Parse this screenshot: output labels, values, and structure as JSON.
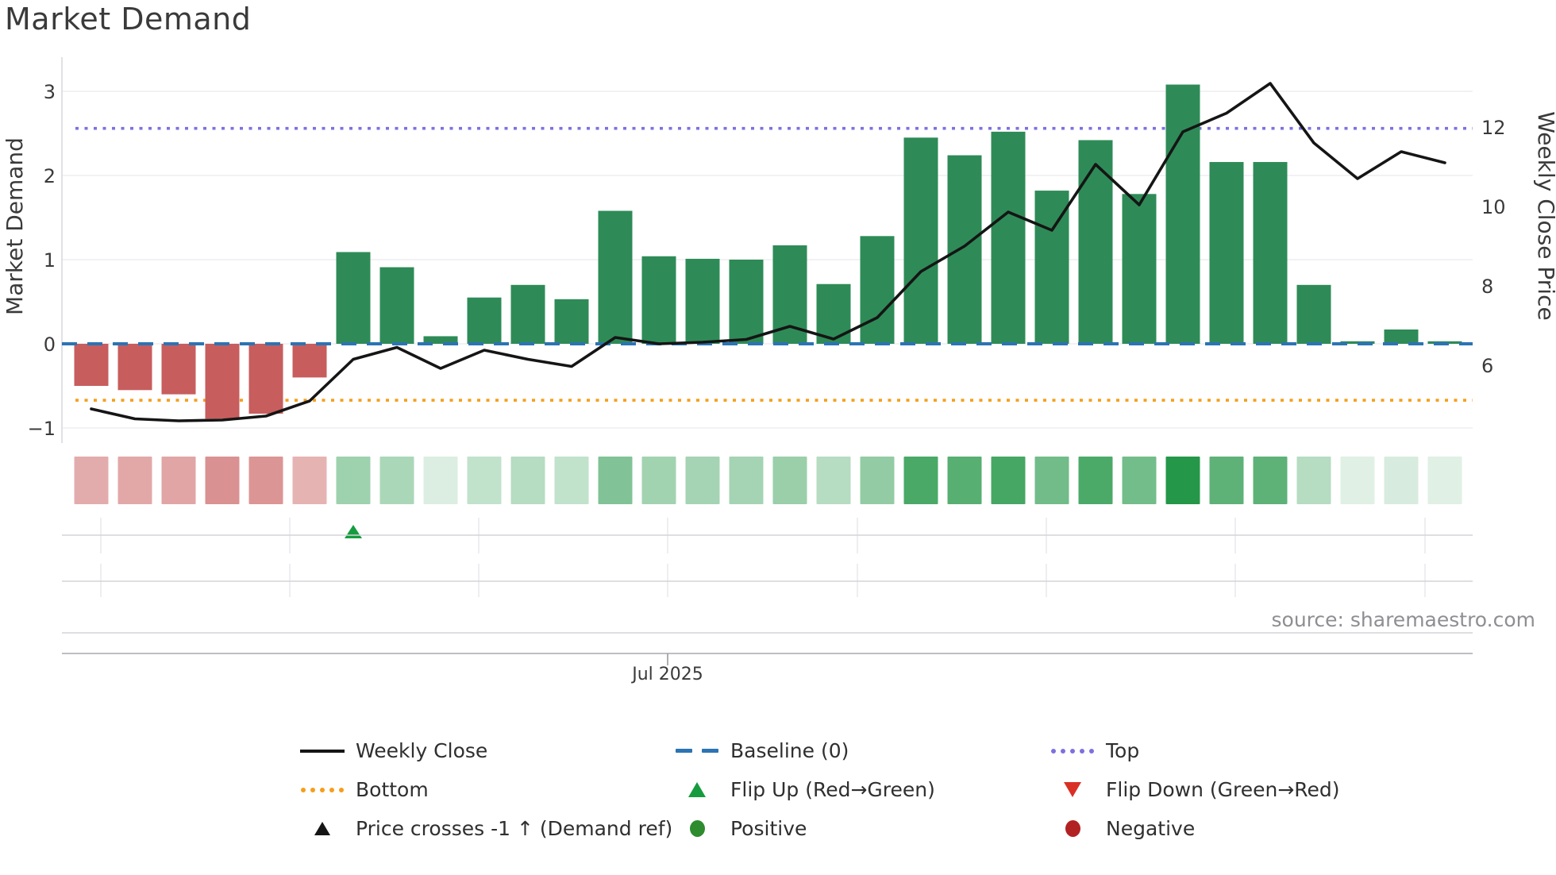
{
  "title": "Market Demand",
  "source": "source: sharemaestro.com",
  "axes": {
    "left": {
      "label": "Market Demand",
      "ticks": [
        "3",
        "2",
        "1",
        "0",
        "−1"
      ],
      "tick_values": [
        3,
        2,
        1,
        0,
        -1
      ]
    },
    "right": {
      "label": "Weekly Close Price",
      "ticks": [
        "12",
        "10",
        "8",
        "6"
      ],
      "tick_values": [
        12,
        10,
        8,
        6
      ]
    },
    "x": {
      "tick_label": "Jul 2025"
    }
  },
  "chart_data": {
    "type": "bar+line",
    "weeks": 32,
    "series": [
      {
        "name": "Market Demand",
        "type": "bar",
        "axis": "left",
        "values": [
          -0.5,
          -0.55,
          -0.6,
          -0.89,
          -0.83,
          -0.4,
          1.09,
          0.91,
          0.09,
          0.55,
          0.7,
          0.53,
          1.58,
          1.04,
          1.01,
          1.0,
          1.17,
          0.71,
          1.28,
          2.45,
          2.24,
          2.52,
          1.82,
          2.42,
          1.78,
          3.08,
          2.16,
          2.16,
          0.7,
          0.03,
          0.17,
          0.03
        ]
      },
      {
        "name": "Weekly Close",
        "type": "line",
        "axis": "right",
        "values": [
          4.9,
          4.65,
          4.6,
          4.62,
          4.72,
          5.1,
          6.15,
          6.45,
          5.92,
          6.38,
          6.15,
          5.97,
          6.7,
          6.54,
          6.58,
          6.65,
          6.98,
          6.66,
          7.2,
          8.36,
          9.0,
          9.86,
          9.4,
          11.06,
          10.04,
          11.88,
          12.35,
          13.1,
          11.6,
          10.7,
          11.38,
          11.1
        ]
      }
    ],
    "heatmap_strip": {
      "note": "one cell per week, intensity = |demand|",
      "positive_color": "#229646",
      "negative_color": "#c44e4e"
    },
    "reference_lines": {
      "baseline": 0,
      "top": 2.56,
      "bottom": -0.67
    },
    "markers": {
      "flip_up_week_index": 6
    },
    "left_ylim": [
      -1.2,
      3.4
    ],
    "right_ylim": [
      4.3,
      13.9
    ],
    "x_tick_label": "Jul 2025",
    "legend_position": "bottom",
    "grid": true
  },
  "legend": {
    "columns": [
      {
        "items": [
          {
            "swatch": "line-black",
            "label": "Weekly Close"
          },
          {
            "swatch": "dots-orange",
            "label": "Bottom"
          },
          {
            "swatch": "tri-up-black",
            "label": "Price crosses -1 ↑ (Demand ref)"
          }
        ]
      },
      {
        "items": [
          {
            "swatch": "dash-blue",
            "label": "Baseline (0)"
          },
          {
            "swatch": "tri-up-green",
            "label": "Flip Up (Red→Green)"
          },
          {
            "swatch": "circle-green",
            "label": "Positive"
          }
        ]
      },
      {
        "items": [
          {
            "swatch": "dots-purple",
            "label": "Top"
          },
          {
            "swatch": "tri-down-red",
            "label": "Flip Down (Green→Red)"
          },
          {
            "swatch": "circle-darkred",
            "label": "Negative"
          }
        ]
      }
    ]
  },
  "colors": {
    "bar_positive": "#2e8b57",
    "bar_negative": "#c75d5d",
    "price_line": "#151515",
    "baseline": "#2c74b3",
    "top_line": "#7c71e0",
    "bottom_line": "#f59e1b",
    "flip_up_marker": "#169c3e",
    "positive_dot": "#2e8b2e",
    "negative_dot": "#b22222",
    "flip_down_marker": "#d93025",
    "grid": "#ededf2",
    "text": "#3a3a3a",
    "source_text": "#8e8e93"
  }
}
